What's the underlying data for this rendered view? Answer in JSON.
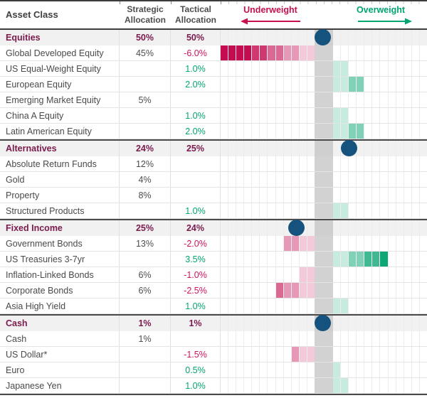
{
  "header": {
    "asset_class": "Asset Class",
    "strategic": "Strategic Allocation",
    "tactical": "Tactical Allocation",
    "underweight": "Underweight",
    "overweight": "Overweight"
  },
  "colors": {
    "crimson": "#C5124F",
    "green": "#00A571",
    "maroon": "#7A1A4D",
    "dot_blue": "#15537E",
    "center_gray": "#D2D2D2",
    "bar_red_base": "#C40D50",
    "bar_green_base": "#00A26E"
  },
  "rows": [
    {
      "type": "category",
      "label": "Equities",
      "strategic": "50%",
      "tactical": "50%",
      "dot_offset_pct": 0
    },
    {
      "type": "item",
      "label": "Global Developed Equity",
      "strategic": "45%",
      "tactical": "-6.0%",
      "bar_pct": -6.0
    },
    {
      "type": "item",
      "label": "US Equal-Weight Equity",
      "strategic": "",
      "tactical": "1.0%",
      "bar_pct": 1.0
    },
    {
      "type": "item",
      "label": "European Equity",
      "strategic": "",
      "tactical": "2.0%",
      "bar_pct": 2.0
    },
    {
      "type": "item",
      "label": "Emerging Market Equity",
      "strategic": "5%",
      "tactical": "",
      "bar_pct": 0
    },
    {
      "type": "item",
      "label": "China A Equity",
      "strategic": "",
      "tactical": "1.0%",
      "bar_pct": 1.0
    },
    {
      "type": "item",
      "label": "Latin American Equity",
      "strategic": "",
      "tactical": "2.0%",
      "bar_pct": 2.0
    },
    {
      "type": "category",
      "label": "Alternatives",
      "strategic": "24%",
      "tactical": "25%",
      "dot_offset_pct": 1
    },
    {
      "type": "item",
      "label": "Absolute Return Funds",
      "strategic": "12%",
      "tactical": "",
      "bar_pct": 0
    },
    {
      "type": "item",
      "label": "Gold",
      "strategic": "4%",
      "tactical": "",
      "bar_pct": 0
    },
    {
      "type": "item",
      "label": "Property",
      "strategic": "8%",
      "tactical": "",
      "bar_pct": 0
    },
    {
      "type": "item",
      "label": "Structured Products",
      "strategic": "",
      "tactical": "1.0%",
      "bar_pct": 1.0
    },
    {
      "type": "category",
      "label": "Fixed Income",
      "strategic": "25%",
      "tactical": "24%",
      "dot_offset_pct": -1
    },
    {
      "type": "item",
      "label": "Government Bonds",
      "strategic": "13%",
      "tactical": "-2.0%",
      "bar_pct": -2.0
    },
    {
      "type": "item",
      "label": "US Treasuries 3-7yr",
      "strategic": "",
      "tactical": "3.5%",
      "bar_pct": 3.5
    },
    {
      "type": "item",
      "label": "Inflation-Linked Bonds",
      "strategic": "6%",
      "tactical": "-1.0%",
      "bar_pct": -1.0
    },
    {
      "type": "item",
      "label": "Corporate Bonds",
      "strategic": "6%",
      "tactical": "-2.5%",
      "bar_pct": -2.5
    },
    {
      "type": "item",
      "label": "Asia High Yield",
      "strategic": "",
      "tactical": "1.0%",
      "bar_pct": 1.0
    },
    {
      "type": "category",
      "label": "Cash",
      "strategic": "1%",
      "tactical": "1%",
      "dot_offset_pct": 0
    },
    {
      "type": "item",
      "label": "Cash",
      "strategic": "1%",
      "tactical": "",
      "bar_pct": 0
    },
    {
      "type": "item",
      "label": "US Dollar*",
      "strategic": "",
      "tactical": "-1.5%",
      "bar_pct": -1.5
    },
    {
      "type": "item",
      "label": "Euro",
      "strategic": "",
      "tactical": "0.5%",
      "bar_pct": 0.5
    },
    {
      "type": "item",
      "label": "Japanese Yen",
      "strategic": "",
      "tactical": "1.0%",
      "bar_pct": 1.0
    }
  ],
  "chart_data": {
    "type": "bar",
    "orientation": "horizontal",
    "unit": "%",
    "cell_size_pct": 0.5,
    "axis": {
      "negative_label": "Underweight",
      "positive_label": "Overweight",
      "xlim": [
        -6,
        6
      ]
    },
    "categories": [
      "Equities",
      "Global Developed Equity",
      "US Equal-Weight Equity",
      "European Equity",
      "Emerging Market Equity",
      "China A Equity",
      "Latin American Equity",
      "Alternatives",
      "Absolute Return Funds",
      "Gold",
      "Property",
      "Structured Products",
      "Fixed Income",
      "Government Bonds",
      "US Treasuries 3-7yr",
      "Inflation-Linked Bonds",
      "Corporate Bonds",
      "Asia High Yield",
      "Cash",
      "Cash",
      "US Dollar*",
      "Euro",
      "Japanese Yen"
    ],
    "series": [
      {
        "name": "Strategic Allocation",
        "values": [
          50,
          45,
          null,
          null,
          5,
          null,
          null,
          24,
          12,
          4,
          8,
          null,
          25,
          13,
          null,
          6,
          6,
          null,
          1,
          1,
          null,
          null,
          null
        ]
      },
      {
        "name": "Tactical Allocation",
        "values": [
          50,
          -6.0,
          1.0,
          2.0,
          null,
          1.0,
          2.0,
          25,
          null,
          null,
          null,
          1.0,
          24,
          -2.0,
          3.5,
          -1.0,
          -2.5,
          1.0,
          1,
          null,
          -1.5,
          0.5,
          1.0
        ]
      }
    ],
    "category_dots": [
      {
        "label": "Equities",
        "tactical_minus_strategic_pct": 0
      },
      {
        "label": "Alternatives",
        "tactical_minus_strategic_pct": 1
      },
      {
        "label": "Fixed Income",
        "tactical_minus_strategic_pct": -1
      },
      {
        "label": "Cash",
        "tactical_minus_strategic_pct": 0
      }
    ],
    "legend_position": "none",
    "grid": true
  }
}
